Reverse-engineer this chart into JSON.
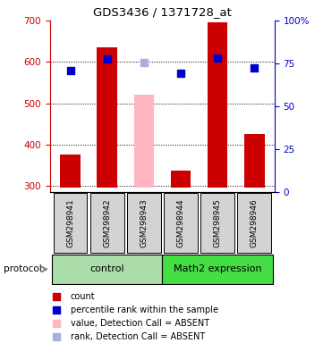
{
  "title": "GDS3436 / 1371728_at",
  "samples": [
    "GSM298941",
    "GSM298942",
    "GSM298943",
    "GSM298944",
    "GSM298945",
    "GSM298946"
  ],
  "ylim_left": [
    285,
    700
  ],
  "ylim_right": [
    0,
    100
  ],
  "yticks_left": [
    300,
    400,
    500,
    600,
    700
  ],
  "yticks_right": [
    0,
    25,
    50,
    75,
    100
  ],
  "bar_values": [
    375,
    635,
    null,
    338,
    695,
    425
  ],
  "bar_color": "#cc0000",
  "absent_bar_value": 520,
  "absent_bar_index": 2,
  "absent_bar_color": "#FFB6C1",
  "blue_sq_values": [
    578,
    607,
    null,
    572,
    610,
    586
  ],
  "absent_sq_value": 598,
  "absent_sq_index": 2,
  "blue_sq_color": "#0000cc",
  "absent_sq_color": "#aab0dd",
  "bar_bottom": 295,
  "bar_width": 0.55,
  "left_axis_color": "#cc0000",
  "right_axis_color": "#0000cc",
  "sample_box_color": "#d3d3d3",
  "ctrl_color": "#aaddaa",
  "math_color": "#44dd44",
  "legend_items": [
    {
      "label": "count",
      "color": "#cc0000"
    },
    {
      "label": "percentile rank within the sample",
      "color": "#0000cc"
    },
    {
      "label": "value, Detection Call = ABSENT",
      "color": "#FFB6C1"
    },
    {
      "label": "rank, Detection Call = ABSENT",
      "color": "#aab0dd"
    }
  ]
}
